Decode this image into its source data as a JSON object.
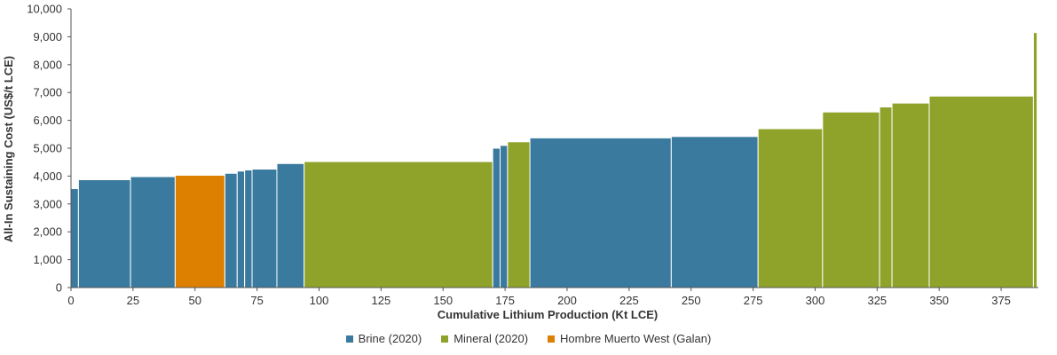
{
  "chart_data": {
    "type": "bar",
    "subtype": "cost-curve",
    "title": "",
    "xlabel": "Cumulative Lithium Production (Kt LCE)",
    "ylabel": "All-In Sustaining Cost (US$/t LCE)",
    "xlim": [
      0,
      390
    ],
    "ylim": [
      0,
      10000
    ],
    "x_ticks": [
      0,
      25,
      50,
      75,
      100,
      125,
      150,
      175,
      200,
      225,
      250,
      275,
      300,
      325,
      350,
      375
    ],
    "x_tick_labels": [
      "0",
      "25",
      "50",
      "75",
      "100",
      "125",
      "150",
      "175",
      "200",
      "225",
      "250",
      "275",
      "300",
      "325",
      "350",
      "375"
    ],
    "y_ticks": [
      0,
      1000,
      2000,
      3000,
      4000,
      5000,
      6000,
      7000,
      8000,
      9000,
      10000
    ],
    "y_tick_labels": [
      "0",
      "1,000",
      "2,000",
      "3,000",
      "4,000",
      "5,000",
      "6,000",
      "7,000",
      "8,000",
      "9,000",
      "10,000"
    ],
    "grid": false,
    "legend_position": "bottom-center",
    "colors": {
      "Brine (2020)": "#3a7a9e",
      "Mineral (2020)": "#8fa22a",
      "Hombre Muerto West (Galan)": "#dd8000"
    },
    "series": [
      {
        "name": "Brine (2020)",
        "color": "#3a7a9e",
        "bars": [
          {
            "x_start": 0,
            "x_end": 3,
            "cost": 3550
          },
          {
            "x_start": 3,
            "x_end": 24,
            "cost": 3870
          },
          {
            "x_start": 24,
            "x_end": 42,
            "cost": 3980
          },
          {
            "x_start": 62,
            "x_end": 67,
            "cost": 4100
          },
          {
            "x_start": 67,
            "x_end": 70,
            "cost": 4180
          },
          {
            "x_start": 70,
            "x_end": 73,
            "cost": 4220
          },
          {
            "x_start": 73,
            "x_end": 83,
            "cost": 4250
          },
          {
            "x_start": 83,
            "x_end": 94,
            "cost": 4450
          },
          {
            "x_start": 170,
            "x_end": 173,
            "cost": 5000
          },
          {
            "x_start": 173,
            "x_end": 176,
            "cost": 5100
          },
          {
            "x_start": 185,
            "x_end": 242,
            "cost": 5370
          },
          {
            "x_start": 242,
            "x_end": 277,
            "cost": 5420
          }
        ]
      },
      {
        "name": "Mineral (2020)",
        "color": "#8fa22a",
        "bars": [
          {
            "x_start": 94,
            "x_end": 170,
            "cost": 4520
          },
          {
            "x_start": 176,
            "x_end": 185,
            "cost": 5230
          },
          {
            "x_start": 277,
            "x_end": 303,
            "cost": 5700
          },
          {
            "x_start": 303,
            "x_end": 326,
            "cost": 6300
          },
          {
            "x_start": 326,
            "x_end": 331,
            "cost": 6480
          },
          {
            "x_start": 331,
            "x_end": 346,
            "cost": 6620
          },
          {
            "x_start": 346,
            "x_end": 388,
            "cost": 6870
          },
          {
            "x_start": 388,
            "x_end": 389.5,
            "cost": 9150
          }
        ]
      },
      {
        "name": "Hombre Muerto West (Galan)",
        "color": "#dd8000",
        "bars": [
          {
            "x_start": 42,
            "x_end": 62,
            "cost": 4030
          }
        ]
      }
    ]
  }
}
